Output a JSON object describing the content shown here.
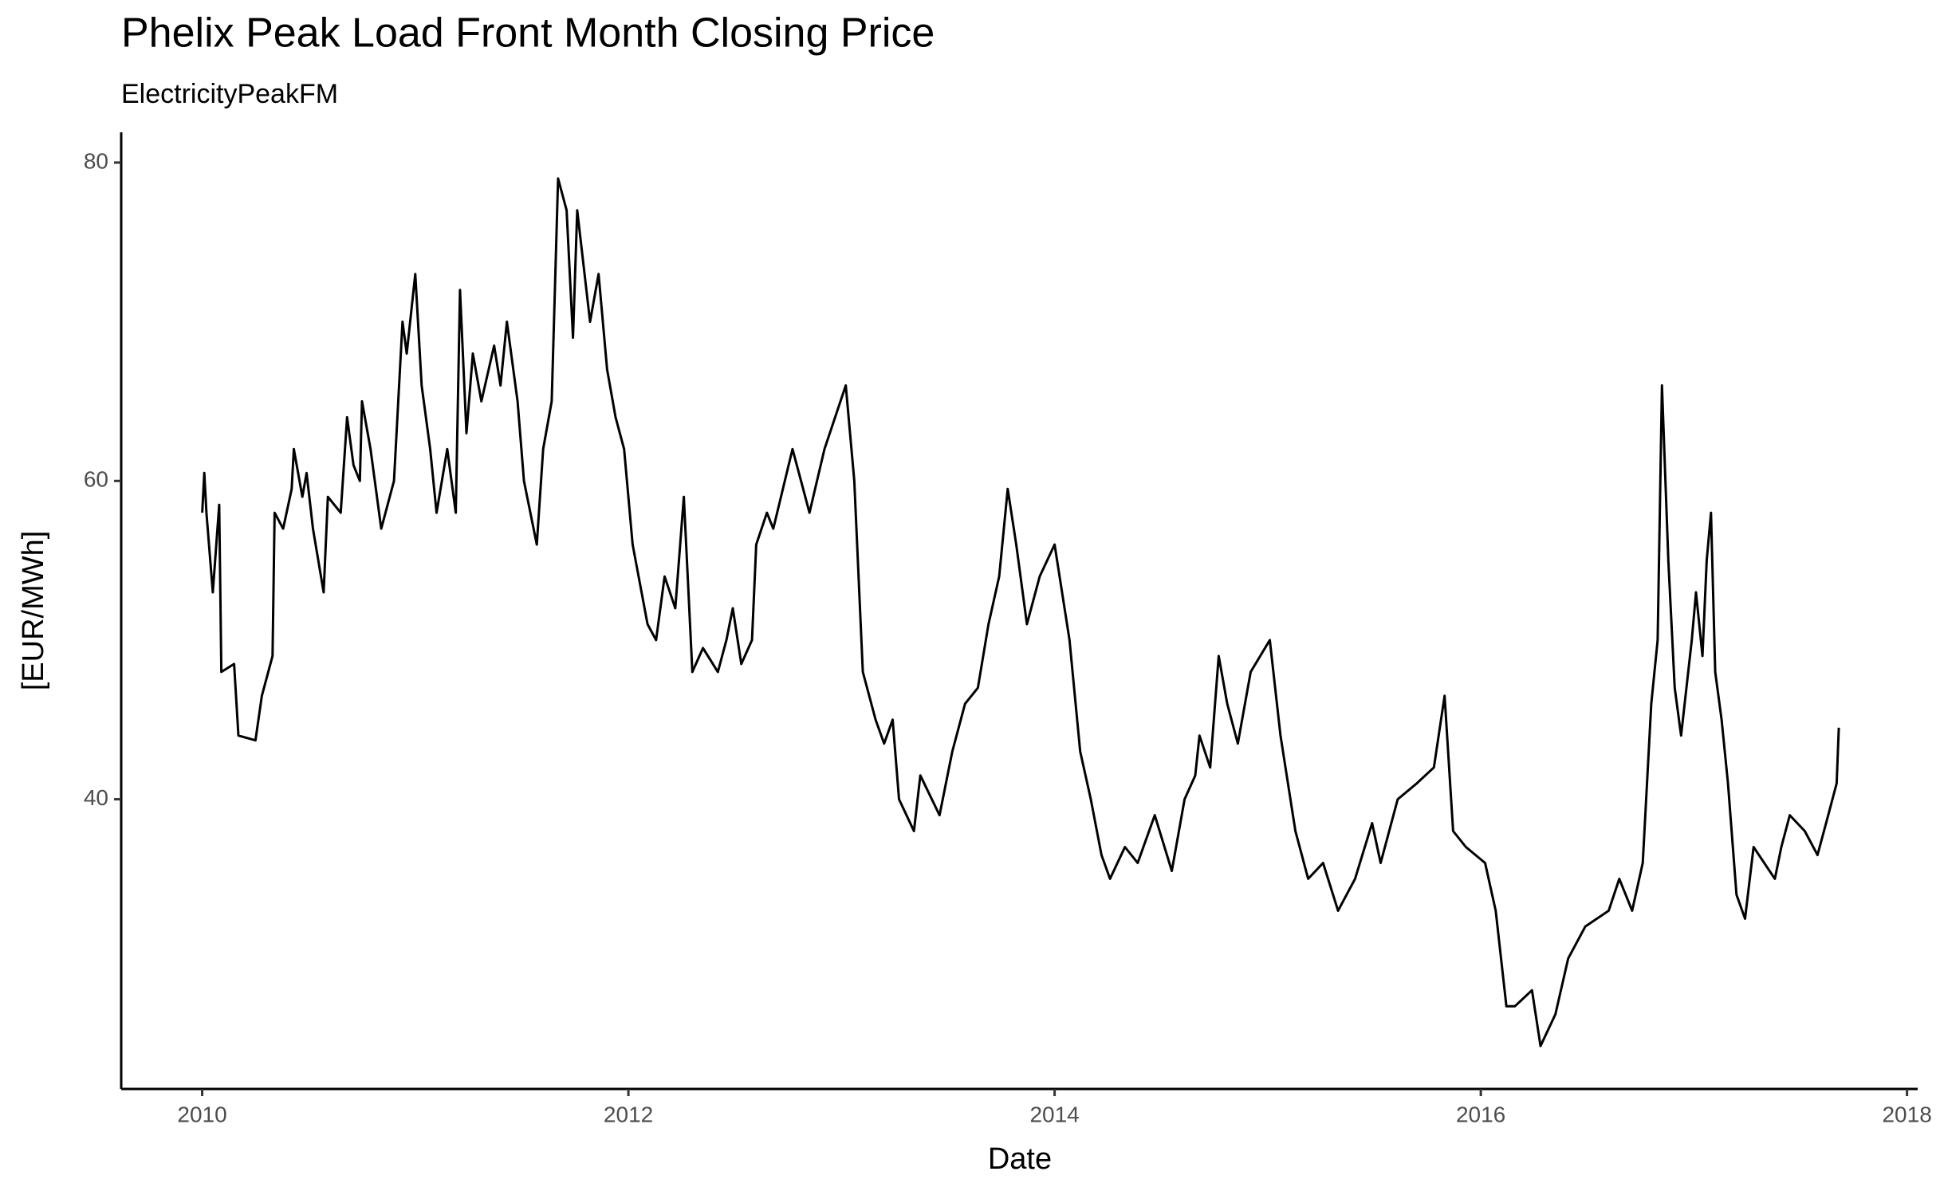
{
  "chart_data": {
    "type": "line",
    "title": "Phelix Peak Load Front Month Closing Price",
    "subtitle": "ElectricityPeakFM",
    "x_label": "Date",
    "y_label": "[EUR/MWh]",
    "color": "#000000",
    "xlim": [
      2009.62,
      2018.05
    ],
    "ylim": [
      21.8,
      81.9
    ],
    "xticks": [
      2010,
      2012,
      2014,
      2016,
      2018
    ],
    "yticks": [
      40,
      60,
      80
    ],
    "grid": false,
    "x": [
      2010.0,
      2010.01,
      2010.02,
      2010.05,
      2010.08,
      2010.09,
      2010.15,
      2010.17,
      2010.25,
      2010.28,
      2010.33,
      2010.34,
      2010.38,
      2010.42,
      2010.43,
      2010.47,
      2010.49,
      2010.52,
      2010.57,
      2010.59,
      2010.65,
      2010.68,
      2010.71,
      2010.74,
      2010.75,
      2010.79,
      2010.84,
      2010.9,
      2010.94,
      2010.96,
      2011.0,
      2011.03,
      2011.07,
      2011.1,
      2011.15,
      2011.19,
      2011.21,
      2011.24,
      2011.27,
      2011.31,
      2011.37,
      2011.4,
      2011.43,
      2011.48,
      2011.51,
      2011.57,
      2011.6,
      2011.64,
      2011.67,
      2011.71,
      2011.74,
      2011.76,
      2011.82,
      2011.86,
      2011.9,
      2011.94,
      2011.98,
      2012.02,
      2012.09,
      2012.13,
      2012.17,
      2012.22,
      2012.26,
      2012.3,
      2012.35,
      2012.42,
      2012.46,
      2012.49,
      2012.53,
      2012.58,
      2012.6,
      2012.65,
      2012.68,
      2012.77,
      2012.81,
      2012.85,
      2012.92,
      2013.02,
      2013.06,
      2013.1,
      2013.16,
      2013.2,
      2013.24,
      2013.27,
      2013.34,
      2013.37,
      2013.46,
      2013.52,
      2013.58,
      2013.64,
      2013.69,
      2013.74,
      2013.78,
      2013.82,
      2013.87,
      2013.93,
      2014.0,
      2014.07,
      2014.12,
      2014.17,
      2014.22,
      2014.26,
      2014.33,
      2014.39,
      2014.47,
      2014.55,
      2014.61,
      2014.66,
      2014.68,
      2014.73,
      2014.77,
      2014.81,
      2014.86,
      2014.92,
      2015.01,
      2015.06,
      2015.13,
      2015.19,
      2015.26,
      2015.33,
      2015.41,
      2015.49,
      2015.53,
      2015.61,
      2015.7,
      2015.78,
      2015.83,
      2015.87,
      2015.93,
      2016.02,
      2016.07,
      2016.12,
      2016.16,
      2016.24,
      2016.28,
      2016.35,
      2016.41,
      2016.49,
      2016.6,
      2016.65,
      2016.71,
      2016.76,
      2016.8,
      2016.83,
      2016.85,
      2016.88,
      2016.91,
      2016.94,
      2016.99,
      2017.01,
      2017.04,
      2017.06,
      2017.08,
      2017.1,
      2017.13,
      2017.16,
      2017.2,
      2017.24,
      2017.28,
      2017.38,
      2017.41,
      2017.45,
      2017.52,
      2017.58,
      2017.63,
      2017.67,
      2017.68
    ],
    "values": [
      58,
      60.5,
      58,
      53,
      58.5,
      48,
      48.5,
      44,
      43.7,
      46.5,
      49,
      58,
      57,
      59.5,
      62,
      59,
      60.5,
      57,
      53,
      59,
      58,
      64,
      61,
      60,
      65,
      62,
      57,
      60,
      70,
      68,
      73,
      66,
      62,
      58,
      62,
      58,
      72,
      63,
      68,
      65,
      68.5,
      66,
      70,
      65,
      60,
      56,
      62,
      65,
      79,
      77,
      69,
      77,
      70,
      73,
      67,
      64,
      62,
      56,
      51,
      50,
      54,
      52,
      59,
      48,
      49.5,
      48,
      50,
      52,
      48.5,
      50,
      56,
      58,
      57,
      62,
      60,
      58,
      62,
      66,
      60,
      48,
      45,
      43.5,
      45,
      40,
      38,
      41.5,
      39,
      43,
      46,
      47,
      51,
      54,
      59.5,
      56,
      51,
      54,
      56,
      50,
      43,
      40,
      36.5,
      35,
      37,
      36,
      39,
      35.5,
      40,
      41.5,
      44,
      42,
      49,
      46,
      43.5,
      48,
      50,
      44,
      38,
      35,
      36,
      33,
      35,
      38.5,
      36,
      40,
      41,
      42,
      46.5,
      38,
      37,
      36,
      33,
      27,
      27,
      28,
      24.5,
      26.5,
      30,
      32,
      33,
      35,
      33,
      36,
      46,
      50,
      66,
      55,
      47,
      44,
      50,
      53,
      49,
      55,
      58,
      48,
      45,
      41,
      34,
      32.5,
      37,
      35,
      37,
      39,
      38,
      36.5,
      39,
      41,
      44.5
    ]
  }
}
